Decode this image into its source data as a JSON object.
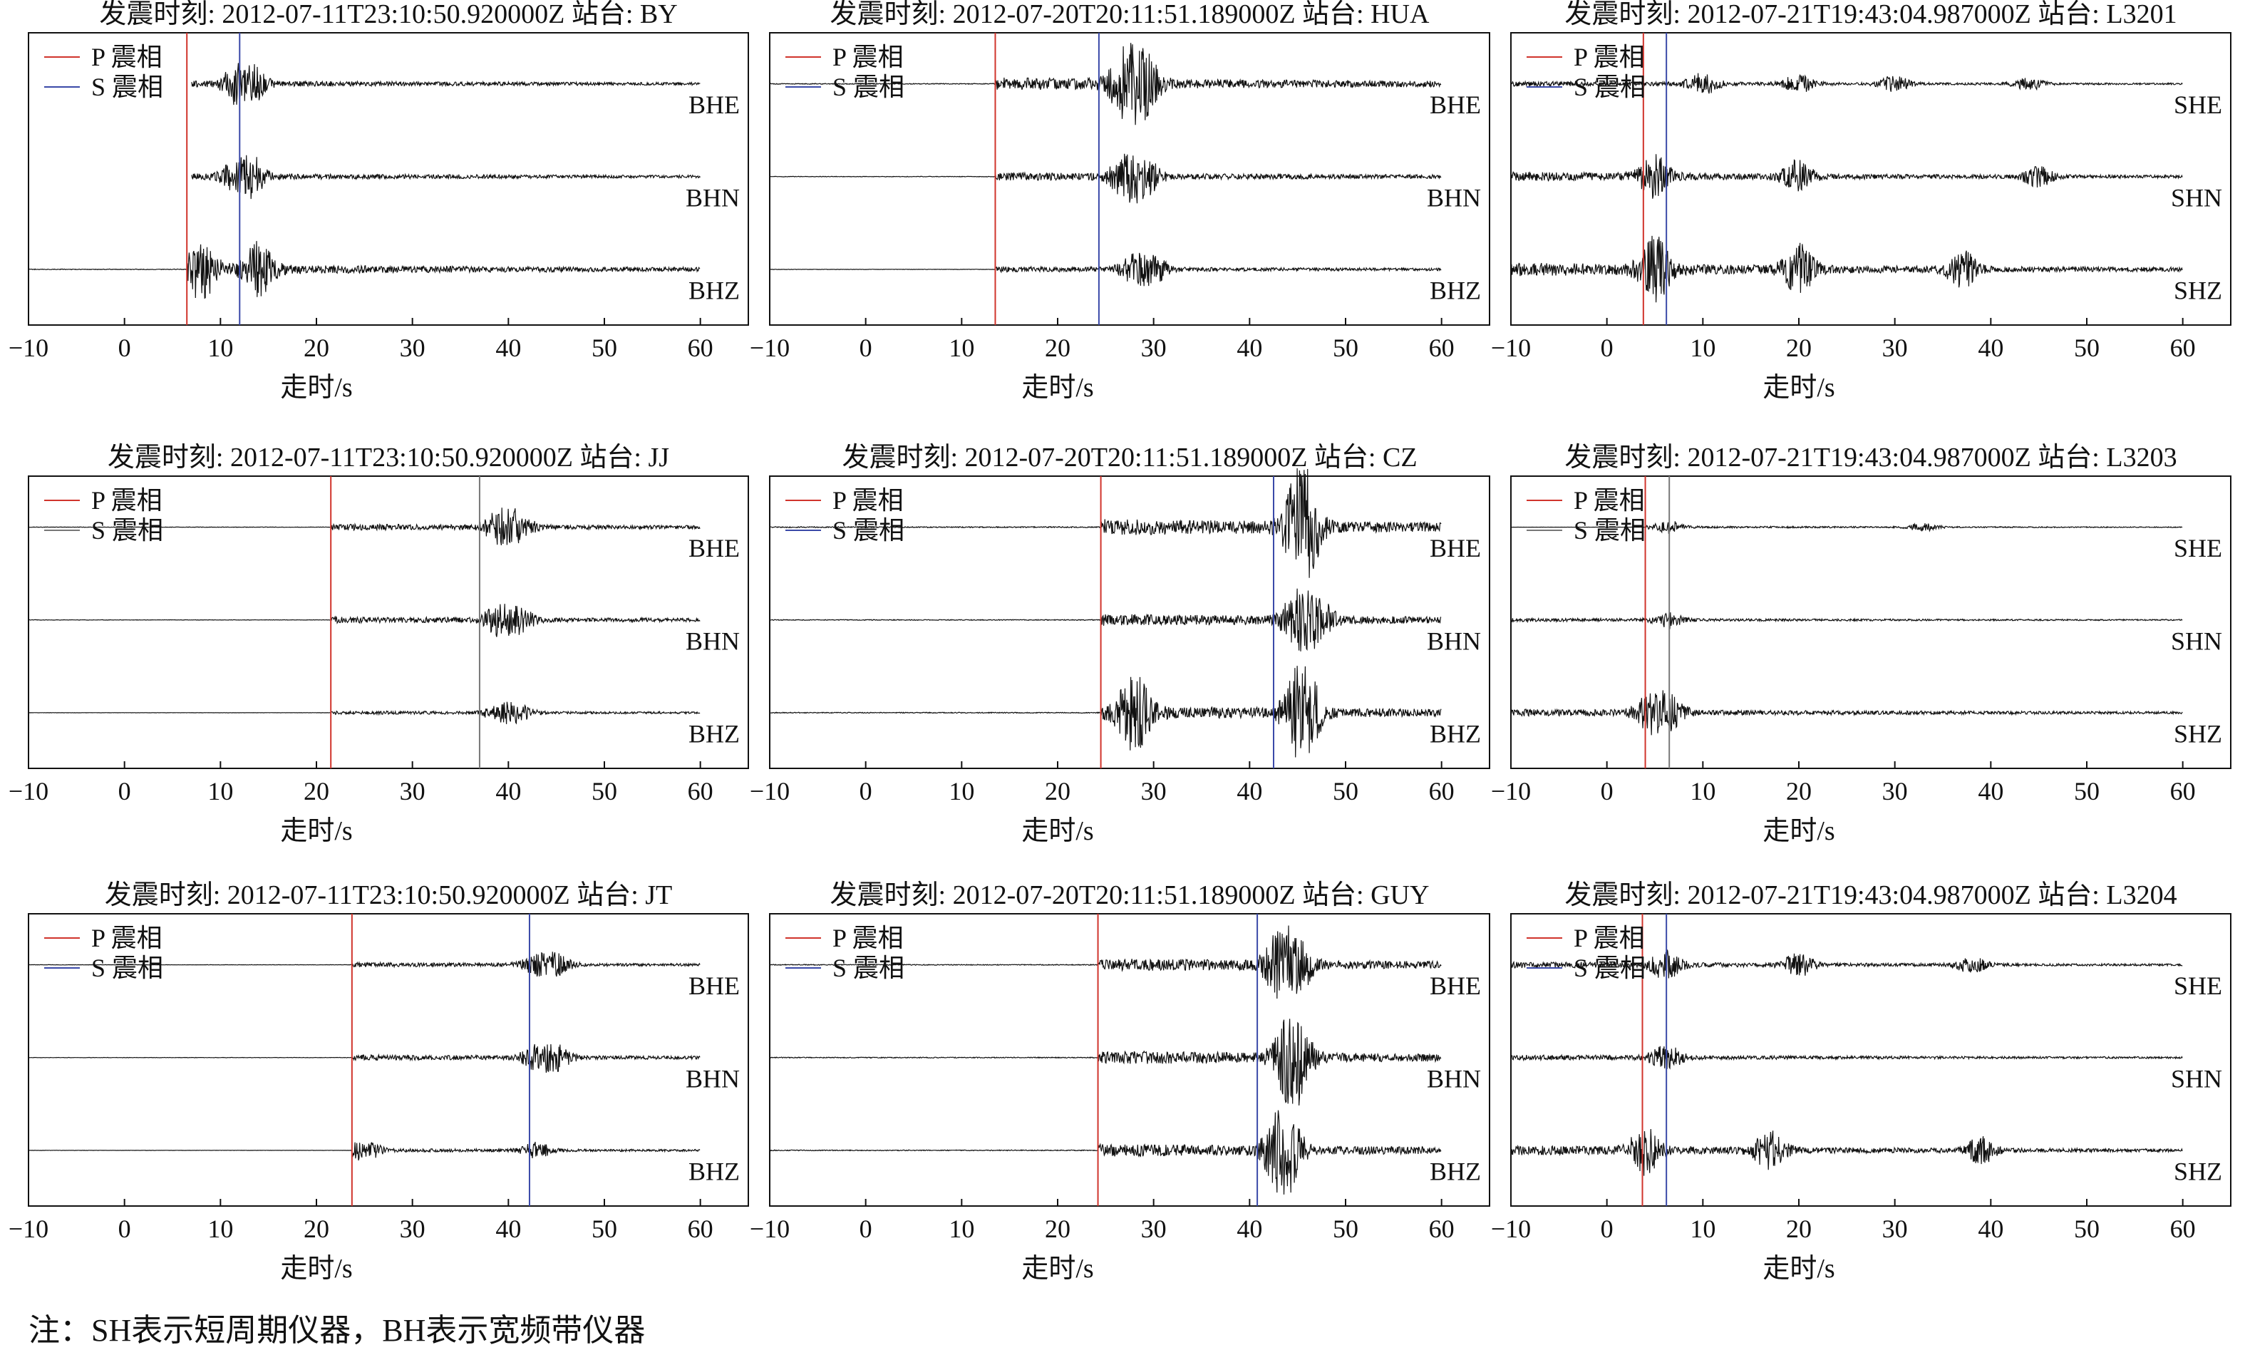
{
  "figure": {
    "note": "注：SH表示短周期仪器，BH表示宽频带仪器",
    "legend_p": "P 震相",
    "legend_s": "S 震相",
    "colors": {
      "p": "#d0342c",
      "s": "#3a49a8",
      "trace": "#111111",
      "axis": "#111111"
    },
    "panel_title_template": "发震时刻: {origin} 站台: {station}"
  },
  "chart_data": [
    {
      "type": "line",
      "title": "发震时刻: 2012-07-11T23:10:50.920000Z 站台: BY",
      "xlabel": "走时/s",
      "xlim": [
        -10,
        65
      ],
      "xticks": [
        -10,
        0,
        10,
        20,
        30,
        40,
        50,
        60
      ],
      "p_arrival": 6.5,
      "s_arrival": 12.0,
      "p_color": "#d0342c",
      "s_color": "#3a49a8",
      "series": [
        {
          "name": "BHE",
          "start": 7,
          "end": 60,
          "amp": 0.35,
          "peaks": [
            12,
            13
          ],
          "onset": 6.5
        },
        {
          "name": "BHN",
          "start": 7,
          "end": 60,
          "amp": 0.35,
          "peaks": [
            12,
            13
          ],
          "onset": 6.5
        },
        {
          "name": "BHZ",
          "start": -10,
          "end": 60,
          "amp": 0.55,
          "peaks": [
            8,
            14
          ],
          "onset": 6.5
        }
      ]
    },
    {
      "type": "line",
      "title": "发震时刻: 2012-07-20T20:11:51.189000Z 站台: HUA",
      "xlabel": "走时/s",
      "xlim": [
        -10,
        65
      ],
      "xticks": [
        -10,
        0,
        10,
        20,
        30,
        40,
        50,
        60
      ],
      "p_arrival": 13.5,
      "s_arrival": 24.3,
      "p_color": "#d0342c",
      "s_color": "#3a49a8",
      "series": [
        {
          "name": "BHE",
          "start": -10,
          "end": 60,
          "amp": 0.7,
          "peaks": [
            27,
            29
          ],
          "onset": 13.5
        },
        {
          "name": "BHN",
          "start": -10,
          "end": 60,
          "amp": 0.45,
          "peaks": [
            27,
            29
          ],
          "onset": 13.5
        },
        {
          "name": "BHZ",
          "start": -10,
          "end": 60,
          "amp": 0.3,
          "peaks": [
            28,
            30
          ],
          "onset": 13.5
        }
      ]
    },
    {
      "type": "line",
      "title": "发震时刻: 2012-07-21T19:43:04.987000Z 站台: L3201",
      "xlabel": "走时/s",
      "xlim": [
        -10,
        65
      ],
      "xticks": [
        -10,
        0,
        10,
        20,
        30,
        40,
        50,
        60
      ],
      "p_arrival": 3.8,
      "s_arrival": 6.2,
      "p_color": "#d0342c",
      "s_color": "#3a49a8",
      "series": [
        {
          "name": "SHE",
          "start": -10,
          "end": 60,
          "amp": 0.28,
          "peaks": [
            10,
            20,
            30,
            44
          ],
          "onset": -10
        },
        {
          "name": "SHN",
          "start": -10,
          "end": 60,
          "amp": 0.5,
          "peaks": [
            5,
            20,
            45
          ],
          "onset": -10
        },
        {
          "name": "SHZ",
          "start": -10,
          "end": 60,
          "amp": 0.75,
          "peaks": [
            5,
            20,
            37
          ],
          "onset": -10
        }
      ]
    },
    {
      "type": "line",
      "title": "发震时刻: 2012-07-11T23:10:50.920000Z 站台: JJ",
      "xlabel": "走时/s",
      "xlim": [
        -10,
        65
      ],
      "xticks": [
        -10,
        0,
        10,
        20,
        30,
        40,
        50,
        60
      ],
      "p_arrival": 21.5,
      "s_arrival": 37.0,
      "p_color": "#d0342c",
      "s_color": "#777777",
      "series": [
        {
          "name": "BHE",
          "start": -10,
          "end": 60,
          "amp": 0.35,
          "peaks": [
            39,
            41
          ],
          "onset": 21.5
        },
        {
          "name": "BHN",
          "start": -10,
          "end": 60,
          "amp": 0.35,
          "peaks": [
            39,
            41
          ],
          "onset": 21.5
        },
        {
          "name": "BHZ",
          "start": -10,
          "end": 60,
          "amp": 0.2,
          "peaks": [
            39,
            41
          ],
          "onset": 21.5
        }
      ]
    },
    {
      "type": "line",
      "title": "发震时刻: 2012-07-20T20:11:51.189000Z 站台: CZ",
      "xlabel": "走时/s",
      "xlim": [
        -10,
        65
      ],
      "xticks": [
        -10,
        0,
        10,
        20,
        30,
        40,
        50,
        60
      ],
      "p_arrival": 24.5,
      "s_arrival": 42.5,
      "p_color": "#d0342c",
      "s_color": "#3a49a8",
      "series": [
        {
          "name": "BHE",
          "start": -10,
          "end": 60,
          "amp": 0.9,
          "peaks": [
            45,
            46
          ],
          "onset": 24.5
        },
        {
          "name": "BHN",
          "start": -10,
          "end": 60,
          "amp": 0.65,
          "peaks": [
            45,
            47
          ],
          "onset": 24.5
        },
        {
          "name": "BHZ",
          "start": -10,
          "end": 60,
          "amp": 0.75,
          "peaks": [
            28,
            45,
            46
          ],
          "onset": 24.5
        }
      ]
    },
    {
      "type": "line",
      "title": "发震时刻: 2012-07-21T19:43:04.987000Z 站台: L3203",
      "xlabel": "走时/s",
      "xlim": [
        -10,
        65
      ],
      "xticks": [
        -10,
        0,
        10,
        20,
        30,
        40,
        50,
        60
      ],
      "p_arrival": 4.0,
      "s_arrival": 6.5,
      "p_color": "#d0342c",
      "s_color": "#777777",
      "series": [
        {
          "name": "SHE",
          "start": -10,
          "end": 60,
          "amp": 0.12,
          "peaks": [
            6.5,
            33
          ],
          "onset": 4.0
        },
        {
          "name": "SHN",
          "start": -10,
          "end": 60,
          "amp": 0.2,
          "peaks": [
            6.5
          ],
          "onset": -10
        },
        {
          "name": "SHZ",
          "start": -10,
          "end": 60,
          "amp": 0.4,
          "peaks": [
            4.5,
            6.5
          ],
          "onset": -10
        }
      ]
    },
    {
      "type": "line",
      "title": "发震时刻: 2012-07-11T23:10:50.920000Z 站台: JT",
      "xlabel": "走时/s",
      "xlim": [
        -10,
        65
      ],
      "xticks": [
        -10,
        0,
        10,
        20,
        30,
        40,
        50,
        60
      ],
      "p_arrival": 23.7,
      "s_arrival": 42.2,
      "p_color": "#d0342c",
      "s_color": "#3a49a8",
      "series": [
        {
          "name": "BHE",
          "start": -10,
          "end": 60,
          "amp": 0.25,
          "peaks": [
            43,
            45
          ],
          "onset": 23.7
        },
        {
          "name": "BHN",
          "start": -10,
          "end": 60,
          "amp": 0.3,
          "peaks": [
            43,
            45
          ],
          "onset": 23.7
        },
        {
          "name": "BHZ",
          "start": -10,
          "end": 60,
          "amp": 0.2,
          "peaks": [
            25,
            43
          ],
          "onset": 23.7
        }
      ]
    },
    {
      "type": "line",
      "title": "发震时刻: 2012-07-20T20:11:51.189000Z 站台: GUY",
      "xlabel": "走时/s",
      "xlim": [
        -10,
        65
      ],
      "xticks": [
        -10,
        0,
        10,
        20,
        30,
        40,
        50,
        60
      ],
      "p_arrival": 24.2,
      "s_arrival": 40.8,
      "p_color": "#d0342c",
      "s_color": "#3a49a8",
      "series": [
        {
          "name": "BHE",
          "start": -10,
          "end": 60,
          "amp": 0.7,
          "peaks": [
            43,
            45
          ],
          "onset": 24.2
        },
        {
          "name": "BHN",
          "start": -10,
          "end": 60,
          "amp": 0.75,
          "peaks": [
            44,
            45
          ],
          "onset": 24.2
        },
        {
          "name": "BHZ",
          "start": -10,
          "end": 60,
          "amp": 0.7,
          "peaks": [
            43,
            44
          ],
          "onset": 24.2
        }
      ]
    },
    {
      "type": "line",
      "title": "发震时刻: 2012-07-21T19:43:04.987000Z 站台: L3204",
      "xlabel": "走时/s",
      "xlim": [
        -10,
        65
      ],
      "xticks": [
        -10,
        0,
        10,
        20,
        30,
        40,
        50,
        60
      ],
      "p_arrival": 3.7,
      "s_arrival": 6.2,
      "p_color": "#d0342c",
      "s_color": "#3a49a8",
      "series": [
        {
          "name": "SHE",
          "start": -10,
          "end": 60,
          "amp": 0.35,
          "peaks": [
            6.2,
            20,
            38
          ],
          "onset": -10
        },
        {
          "name": "SHN",
          "start": -10,
          "end": 60,
          "amp": 0.3,
          "peaks": [
            6.2
          ],
          "onset": -10
        },
        {
          "name": "SHZ",
          "start": -10,
          "end": 60,
          "amp": 0.55,
          "peaks": [
            4,
            17,
            39
          ],
          "onset": -10
        }
      ]
    }
  ]
}
